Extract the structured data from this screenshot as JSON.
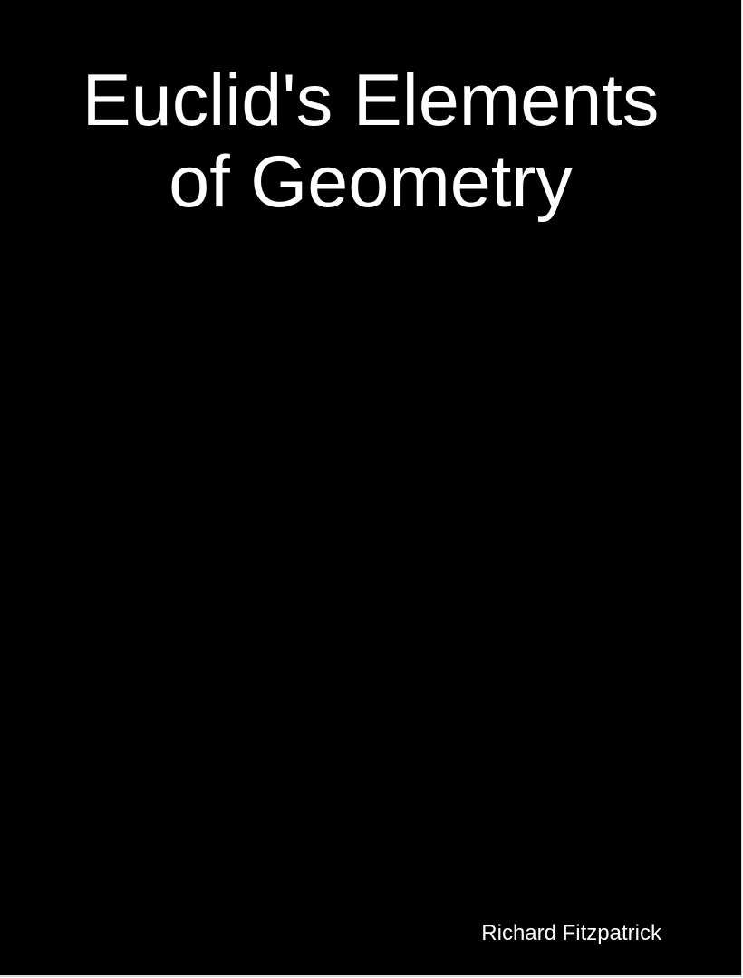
{
  "cover": {
    "title_line1": "Euclid's Elements",
    "title_line2": "of Geometry",
    "author": "Richard Fitzpatrick"
  },
  "colors": {
    "background": "#000000",
    "text": "#ffffff",
    "page_edge": "#d9d9d9"
  }
}
